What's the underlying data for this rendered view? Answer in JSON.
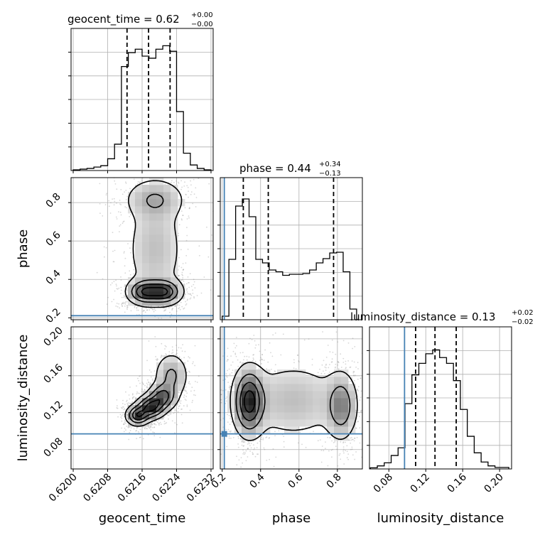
{
  "chart_data": {
    "type": "corner",
    "parameters": [
      "geocent_time",
      "phase",
      "luminosity_distance"
    ],
    "axis_labels": {
      "geocent_time": "geocent_time",
      "phase": "phase",
      "luminosity_distance": "luminosity_distance"
    },
    "titles": {
      "geocent_time": {
        "prefix": "geocent_time = 0.62",
        "plus": "+0.00",
        "minus": "−0.00"
      },
      "phase": {
        "prefix": "phase = 0.44",
        "plus": "+0.34",
        "minus": "−0.13"
      },
      "luminosity_distance": {
        "prefix": "luminosity_distance = 0.13",
        "plus": "+0.02",
        "minus": "−0.02"
      }
    },
    "ranges": {
      "geocent_time": [
        0.61995,
        0.62325
      ],
      "phase": [
        0.19,
        0.93
      ],
      "luminosity_distance": [
        0.059,
        0.213
      ]
    },
    "ticks": {
      "geocent_time": {
        "values": [
          0.62,
          0.6208,
          0.6216,
          0.6224,
          0.6232
        ],
        "labels": [
          "0.6200",
          "0.6208",
          "0.6216",
          "0.6224",
          "0.6232"
        ]
      },
      "phase": {
        "values": [
          0.2,
          0.4,
          0.6,
          0.8
        ],
        "labels": [
          "0.2",
          "0.4",
          "0.6",
          "0.8"
        ]
      },
      "luminosity_distance": {
        "values": [
          0.08,
          0.12,
          0.16,
          0.2
        ],
        "labels": [
          "0.08",
          "0.12",
          "0.16",
          "0.20"
        ]
      }
    },
    "truths": {
      "phase": 0.211,
      "luminosity_distance": 0.097
    },
    "quantiles": {
      "geocent_time": [
        0.62125,
        0.62175,
        0.62225
      ],
      "phase": [
        0.31,
        0.44,
        0.78
      ],
      "luminosity_distance": [
        0.109,
        0.13,
        0.153
      ]
    },
    "histograms": {
      "geocent_time": {
        "edges": [
          0.62,
          0.62016,
          0.62032,
          0.62048,
          0.62064,
          0.6208,
          0.62096,
          0.62112,
          0.62128,
          0.62144,
          0.6216,
          0.62176,
          0.62192,
          0.62208,
          0.62224,
          0.6224,
          0.62256,
          0.62272,
          0.62288,
          0.62304,
          0.6232
        ],
        "counts": [
          1,
          2,
          3,
          5,
          7,
          17,
          38,
          150,
          170,
          175,
          165,
          162,
          175,
          180,
          172,
          85,
          25,
          8,
          3,
          1
        ],
        "ymax": 205
      },
      "phase": {
        "edges": [
          0.2,
          0.235,
          0.27,
          0.305,
          0.34,
          0.375,
          0.41,
          0.445,
          0.48,
          0.515,
          0.55,
          0.585,
          0.62,
          0.655,
          0.69,
          0.725,
          0.76,
          0.795,
          0.83,
          0.865,
          0.9
        ],
        "counts": [
          10,
          170,
          320,
          340,
          290,
          170,
          160,
          140,
          135,
          125,
          128,
          128,
          130,
          140,
          160,
          172,
          188,
          190,
          135,
          30
        ],
        "ymax": 400
      },
      "luminosity_distance": {
        "edges": [
          0.06,
          0.0675,
          0.075,
          0.0825,
          0.09,
          0.0975,
          0.105,
          0.1125,
          0.12,
          0.1275,
          0.135,
          0.1425,
          0.15,
          0.1575,
          0.165,
          0.1725,
          0.18,
          0.1875,
          0.195,
          0.2025,
          0.21
        ],
        "counts": [
          3,
          8,
          16,
          35,
          55,
          170,
          245,
          275,
          300,
          310,
          290,
          275,
          230,
          155,
          85,
          42,
          18,
          8,
          4,
          4
        ],
        "ymax": 370
      }
    },
    "density_2d": {
      "phase_vs_geocent_time": {
        "blobs": [
          {
            "x": 0.62166,
            "y": 0.335,
            "sx": 0.00022,
            "sy": 0.035,
            "w": 1.0
          },
          {
            "x": 0.62212,
            "y": 0.335,
            "sx": 0.00022,
            "sy": 0.035,
            "w": 1.0
          },
          {
            "x": 0.6219,
            "y": 0.56,
            "sx": 0.0004,
            "sy": 0.17,
            "w": 0.35
          },
          {
            "x": 0.6219,
            "y": 0.82,
            "sx": 0.0004,
            "sy": 0.06,
            "w": 0.4
          }
        ],
        "contour_levels": [
          0.85,
          0.6,
          0.35,
          0.12
        ]
      },
      "luminosity_distance_vs_geocent_time": {
        "blobs": [
          {
            "x": 0.6215,
            "y": 0.117,
            "sx": 0.00015,
            "sy": 0.006,
            "w": 0.9
          },
          {
            "x": 0.6218,
            "y": 0.126,
            "sx": 0.00018,
            "sy": 0.007,
            "w": 1.0
          },
          {
            "x": 0.62207,
            "y": 0.137,
            "sx": 0.00018,
            "sy": 0.008,
            "w": 0.75
          },
          {
            "x": 0.62228,
            "y": 0.16,
            "sx": 0.00022,
            "sy": 0.014,
            "w": 0.45
          }
        ],
        "contour_levels": [
          0.85,
          0.6,
          0.35,
          0.12
        ]
      },
      "luminosity_distance_vs_phase": {
        "blobs": [
          {
            "x": 0.34,
            "y": 0.132,
            "sx": 0.045,
            "sy": 0.02,
            "w": 1.0
          },
          {
            "x": 0.82,
            "y": 0.127,
            "sx": 0.045,
            "sy": 0.02,
            "w": 0.55
          },
          {
            "x": 0.57,
            "y": 0.133,
            "sx": 0.16,
            "sy": 0.025,
            "w": 0.3
          }
        ],
        "contour_levels": [
          0.85,
          0.6,
          0.35,
          0.12
        ]
      }
    },
    "grid": true,
    "colors": {
      "histogram": "#000000",
      "truth": "#4682b4",
      "scatter": "#8c8c8c",
      "grid": "#b0b0b0"
    }
  }
}
